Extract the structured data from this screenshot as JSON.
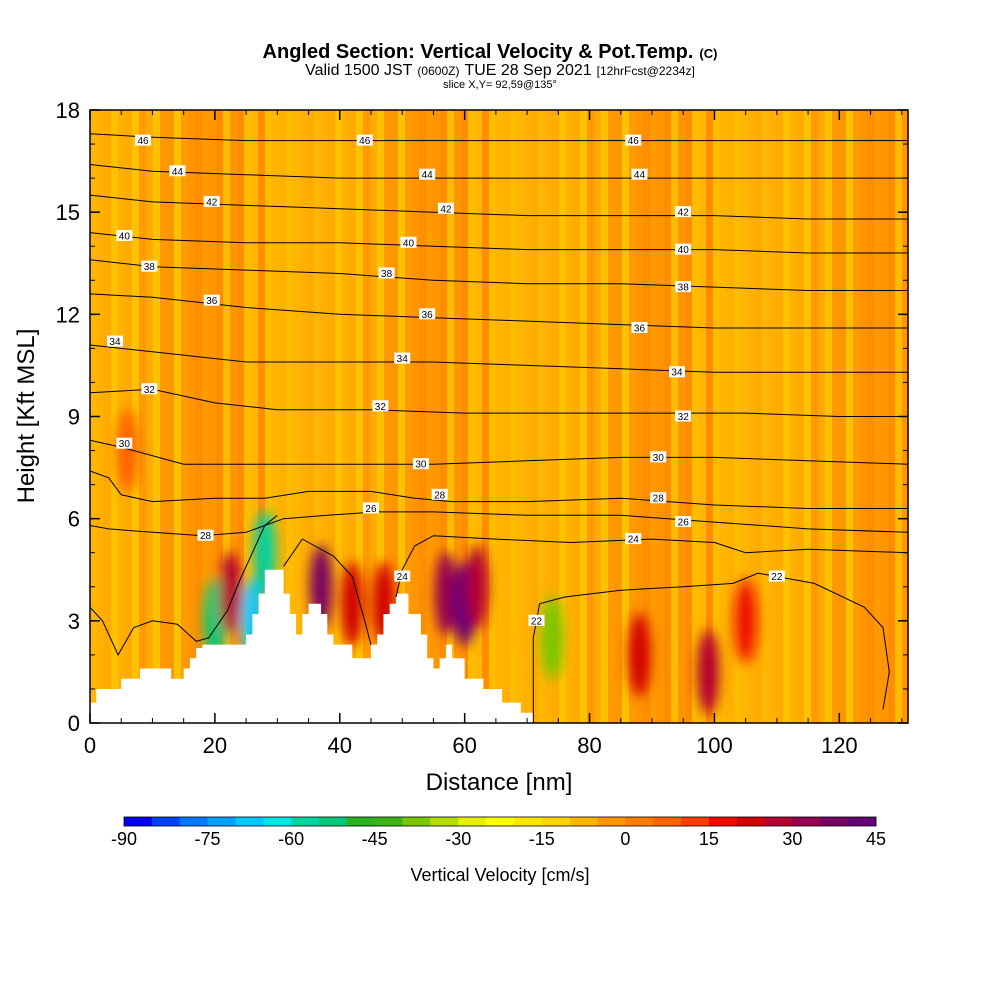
{
  "chart_data": {
    "type": "heatmap",
    "title": "Angled Section: Vertical Velocity & Pot.Temp.",
    "title_unit": "(C)",
    "subtitle_parts": [
      "Valid 1500 JST",
      "(0600Z)",
      "TUE 28 Sep 2021",
      "[12hrFcst@2234z]"
    ],
    "slice_label": "slice X,Y= 92,59@135°",
    "xlabel": "Distance [nm]",
    "ylabel": "Height [Kft MSL]",
    "xlim": [
      0,
      131
    ],
    "ylim": [
      0,
      18
    ],
    "x_ticks": [
      "0",
      "20",
      "40",
      "60",
      "80",
      "100",
      "120"
    ],
    "x_tick_values": [
      0,
      20,
      40,
      60,
      80,
      100,
      120
    ],
    "y_ticks": [
      "0",
      "3",
      "6",
      "9",
      "12",
      "15",
      "18"
    ],
    "y_tick_values": [
      0,
      3,
      6,
      9,
      12,
      15,
      18
    ],
    "colorbar": {
      "label": "Vertical Velocity [cm/s]",
      "tick_labels": [
        "-90",
        "-75",
        "-60",
        "-45",
        "-30",
        "-15",
        "0",
        "15",
        "30",
        "45"
      ],
      "tick_values": [
        -90,
        -75,
        -60,
        -45,
        -30,
        -15,
        0,
        15,
        30,
        45
      ],
      "bins": [
        -90,
        -85,
        -80,
        -75,
        -70,
        -65,
        -60,
        -55,
        -50,
        -45,
        -40,
        -35,
        -30,
        -25,
        -20,
        -15,
        -10,
        -5,
        0,
        5,
        10,
        15,
        20,
        25,
        30,
        35,
        40,
        45
      ],
      "colors": [
        "#0000f0",
        "#0040ff",
        "#0078ff",
        "#00a0ff",
        "#00c8ff",
        "#00e6e6",
        "#00d2a0",
        "#00c878",
        "#28b41e",
        "#3cb414",
        "#78c800",
        "#b4dc00",
        "#e6f000",
        "#ffff00",
        "#ffe600",
        "#ffd200",
        "#ffb400",
        "#ff9600",
        "#ff7d00",
        "#ff6400",
        "#ff3c00",
        "#f00a00",
        "#d20000",
        "#b40032",
        "#960050",
        "#780064",
        "#640078"
      ]
    },
    "velocity_features": [
      {
        "x": 6,
        "y": 8.0,
        "value": 8
      },
      {
        "x": 20,
        "y": 3.0,
        "value": -55
      },
      {
        "x": 22.5,
        "y": 3.8,
        "value": 25
      },
      {
        "x": 26,
        "y": 3.0,
        "value": -70
      },
      {
        "x": 28,
        "y": 5.0,
        "value": -60
      },
      {
        "x": 37,
        "y": 4.0,
        "value": 35
      },
      {
        "x": 42,
        "y": 3.5,
        "value": 22
      },
      {
        "x": 47,
        "y": 3.5,
        "value": 22
      },
      {
        "x": 57,
        "y": 3.8,
        "value": 30
      },
      {
        "x": 60,
        "y": 3.5,
        "value": 42
      },
      {
        "x": 62,
        "y": 4.0,
        "value": 25
      },
      {
        "x": 74,
        "y": 2.5,
        "value": -38
      },
      {
        "x": 88,
        "y": 2.0,
        "value": 20
      },
      {
        "x": 99,
        "y": 1.5,
        "value": 25
      },
      {
        "x": 105,
        "y": 3.0,
        "value": 15
      }
    ],
    "terrain": [
      [
        0,
        0.6
      ],
      [
        1,
        0.6
      ],
      [
        1,
        1.0
      ],
      [
        5,
        1.0
      ],
      [
        5,
        1.3
      ],
      [
        8,
        1.3
      ],
      [
        8,
        1.6
      ],
      [
        13,
        1.6
      ],
      [
        13,
        1.3
      ],
      [
        15,
        1.3
      ],
      [
        15,
        1.6
      ],
      [
        16,
        1.6
      ],
      [
        16,
        1.9
      ],
      [
        17,
        1.9
      ],
      [
        17,
        2.2
      ],
      [
        18,
        2.2
      ],
      [
        18,
        2.3
      ],
      [
        25,
        2.3
      ],
      [
        25,
        2.6
      ],
      [
        26,
        2.6
      ],
      [
        26,
        3.2
      ],
      [
        27,
        3.2
      ],
      [
        27,
        3.8
      ],
      [
        28,
        3.8
      ],
      [
        28,
        4.5
      ],
      [
        31,
        4.5
      ],
      [
        31,
        3.8
      ],
      [
        32,
        3.8
      ],
      [
        32,
        3.2
      ],
      [
        33,
        3.2
      ],
      [
        33,
        2.6
      ],
      [
        34,
        2.6
      ],
      [
        34,
        3.2
      ],
      [
        35,
        3.2
      ],
      [
        35,
        3.5
      ],
      [
        37,
        3.5
      ],
      [
        37,
        3.2
      ],
      [
        38,
        3.2
      ],
      [
        38,
        2.6
      ],
      [
        39,
        2.6
      ],
      [
        39,
        2.3
      ],
      [
        42,
        2.3
      ],
      [
        42,
        1.9
      ],
      [
        45,
        1.9
      ],
      [
        45,
        2.3
      ],
      [
        46,
        2.3
      ],
      [
        46,
        2.6
      ],
      [
        47,
        2.6
      ],
      [
        47,
        3.2
      ],
      [
        48,
        3.2
      ],
      [
        48,
        3.5
      ],
      [
        49,
        3.5
      ],
      [
        49,
        3.8
      ],
      [
        51,
        3.8
      ],
      [
        51,
        3.2
      ],
      [
        53,
        3.2
      ],
      [
        53,
        2.6
      ],
      [
        54,
        2.6
      ],
      [
        54,
        1.9
      ],
      [
        55,
        1.9
      ],
      [
        55,
        1.6
      ],
      [
        56,
        1.6
      ],
      [
        56,
        1.9
      ],
      [
        57,
        1.9
      ],
      [
        57,
        2.3
      ],
      [
        58,
        2.3
      ],
      [
        58,
        1.9
      ],
      [
        60,
        1.9
      ],
      [
        60,
        1.3
      ],
      [
        63,
        1.3
      ],
      [
        63,
        1.0
      ],
      [
        66,
        1.0
      ],
      [
        66,
        0.6
      ],
      [
        69,
        0.6
      ],
      [
        69,
        0.3
      ],
      [
        71,
        0.3
      ],
      [
        71,
        0.0
      ]
    ],
    "theta_contours": [
      {
        "label": "22",
        "points": [
          [
            71,
            0.0
          ],
          [
            71,
            2.5
          ],
          [
            72,
            3.5
          ],
          [
            76,
            3.7
          ],
          [
            85,
            3.9
          ],
          [
            95,
            4.0
          ],
          [
            103,
            4.1
          ],
          [
            107,
            4.4
          ],
          [
            116,
            4.1
          ],
          [
            124,
            3.4
          ],
          [
            127,
            2.8
          ],
          [
            128,
            1.5
          ],
          [
            127,
            0.4
          ]
        ],
        "labels_at": [
          [
            71.5,
            3.0
          ],
          [
            110,
            4.3
          ]
        ]
      },
      {
        "label": "22",
        "points": [
          [
            0,
            3.4
          ],
          [
            2,
            3.0
          ],
          [
            4.5,
            2.0
          ],
          [
            7,
            2.8
          ],
          [
            10,
            3.0
          ],
          [
            14,
            2.9
          ],
          [
            17,
            2.4
          ],
          [
            19,
            2.5
          ],
          [
            22,
            3.3
          ],
          [
            24,
            4.2
          ],
          [
            26,
            5.0
          ],
          [
            28,
            5.8
          ],
          [
            30,
            6.1
          ]
        ],
        "labels_at": []
      },
      {
        "label": "24",
        "points": [
          [
            31,
            4.6
          ],
          [
            34,
            5.4
          ],
          [
            39,
            4.9
          ],
          [
            42,
            4.3
          ],
          [
            44,
            3.0
          ],
          [
            45,
            2.3
          ]
        ],
        "labels_at": []
      },
      {
        "label": "24",
        "points": [
          [
            49,
            3.7
          ],
          [
            50,
            4.5
          ],
          [
            52,
            5.2
          ],
          [
            55,
            5.5
          ],
          [
            65,
            5.4
          ],
          [
            77,
            5.3
          ],
          [
            90,
            5.4
          ],
          [
            100,
            5.3
          ],
          [
            105,
            5.0
          ],
          [
            115,
            5.1
          ],
          [
            131,
            5.0
          ]
        ],
        "labels_at": [
          [
            50,
            4.3
          ],
          [
            87,
            5.4
          ]
        ]
      },
      {
        "label": "26",
        "points": [
          [
            0,
            5.8
          ],
          [
            3,
            5.7
          ],
          [
            10,
            5.6
          ],
          [
            18,
            5.5
          ],
          [
            25,
            5.6
          ],
          [
            28,
            5.8
          ],
          [
            31,
            6.0
          ],
          [
            38,
            6.1
          ],
          [
            46,
            6.2
          ],
          [
            55,
            6.2
          ],
          [
            70,
            6.1
          ],
          [
            85,
            6.1
          ],
          [
            100,
            5.9
          ],
          [
            115,
            5.7
          ],
          [
            131,
            5.6
          ]
        ],
        "labels_at": [
          [
            45,
            6.3
          ],
          [
            95,
            5.9
          ]
        ]
      },
      {
        "label": "28",
        "points": [
          [
            0,
            7.4
          ],
          [
            3,
            7.2
          ],
          [
            5,
            6.7
          ],
          [
            10,
            6.5
          ],
          [
            20,
            6.6
          ],
          [
            28,
            6.6
          ],
          [
            35,
            6.8
          ],
          [
            45,
            6.8
          ],
          [
            52,
            6.6
          ],
          [
            58,
            6.5
          ],
          [
            70,
            6.5
          ],
          [
            85,
            6.6
          ],
          [
            100,
            6.4
          ],
          [
            115,
            6.3
          ],
          [
            131,
            6.3
          ]
        ],
        "labels_at": [
          [
            18.5,
            5.5
          ],
          [
            56,
            6.7
          ],
          [
            91,
            6.6
          ]
        ]
      },
      {
        "label": "30",
        "points": [
          [
            0,
            8.3
          ],
          [
            5,
            8.1
          ],
          [
            15,
            7.6
          ],
          [
            25,
            7.6
          ],
          [
            35,
            7.6
          ],
          [
            45,
            7.6
          ],
          [
            55,
            7.6
          ],
          [
            70,
            7.7
          ],
          [
            85,
            7.8
          ],
          [
            100,
            7.8
          ],
          [
            115,
            7.7
          ],
          [
            131,
            7.6
          ]
        ],
        "labels_at": [
          [
            5.5,
            8.2
          ],
          [
            53,
            7.6
          ],
          [
            91,
            7.8
          ]
        ]
      },
      {
        "label": "32",
        "points": [
          [
            0,
            9.7
          ],
          [
            10,
            9.8
          ],
          [
            20,
            9.4
          ],
          [
            30,
            9.2
          ],
          [
            45,
            9.2
          ],
          [
            60,
            9.1
          ],
          [
            75,
            9.1
          ],
          [
            90,
            9.1
          ],
          [
            105,
            9.1
          ],
          [
            120,
            9.0
          ],
          [
            131,
            9.0
          ]
        ],
        "labels_at": [
          [
            9.5,
            9.8
          ],
          [
            46.5,
            9.3
          ],
          [
            95,
            9.0
          ]
        ]
      },
      {
        "label": "34",
        "points": [
          [
            0,
            11.1
          ],
          [
            10,
            10.9
          ],
          [
            25,
            10.6
          ],
          [
            40,
            10.6
          ],
          [
            55,
            10.6
          ],
          [
            70,
            10.5
          ],
          [
            85,
            10.4
          ],
          [
            100,
            10.3
          ],
          [
            115,
            10.3
          ],
          [
            131,
            10.3
          ]
        ],
        "labels_at": [
          [
            4,
            11.2
          ],
          [
            50,
            10.7
          ],
          [
            94,
            10.3
          ]
        ]
      },
      {
        "label": "36",
        "points": [
          [
            0,
            12.6
          ],
          [
            10,
            12.5
          ],
          [
            25,
            12.2
          ],
          [
            40,
            12.0
          ],
          [
            55,
            11.9
          ],
          [
            70,
            11.8
          ],
          [
            85,
            11.7
          ],
          [
            100,
            11.6
          ],
          [
            115,
            11.6
          ],
          [
            131,
            11.6
          ]
        ],
        "labels_at": [
          [
            19.5,
            12.4
          ],
          [
            54,
            12.0
          ],
          [
            88,
            11.6
          ]
        ]
      },
      {
        "label": "38",
        "points": [
          [
            0,
            13.6
          ],
          [
            10,
            13.4
          ],
          [
            25,
            13.3
          ],
          [
            40,
            13.2
          ],
          [
            55,
            13.0
          ],
          [
            70,
            12.9
          ],
          [
            85,
            12.9
          ],
          [
            100,
            12.8
          ],
          [
            115,
            12.7
          ],
          [
            131,
            12.7
          ]
        ],
        "labels_at": [
          [
            9.5,
            13.4
          ],
          [
            47.5,
            13.2
          ],
          [
            95,
            12.8
          ]
        ]
      },
      {
        "label": "40",
        "points": [
          [
            0,
            14.4
          ],
          [
            10,
            14.2
          ],
          [
            25,
            14.1
          ],
          [
            40,
            14.1
          ],
          [
            55,
            14.0
          ],
          [
            70,
            13.9
          ],
          [
            85,
            13.9
          ],
          [
            100,
            13.9
          ],
          [
            115,
            13.8
          ],
          [
            131,
            13.8
          ]
        ],
        "labels_at": [
          [
            5.5,
            14.3
          ],
          [
            51,
            14.1
          ],
          [
            95,
            13.9
          ]
        ]
      },
      {
        "label": "42",
        "points": [
          [
            0,
            15.5
          ],
          [
            10,
            15.3
          ],
          [
            25,
            15.2
          ],
          [
            40,
            15.1
          ],
          [
            55,
            15.0
          ],
          [
            70,
            14.9
          ],
          [
            85,
            14.9
          ],
          [
            100,
            14.9
          ],
          [
            115,
            14.8
          ],
          [
            131,
            14.8
          ]
        ],
        "labels_at": [
          [
            19.5,
            15.3
          ],
          [
            57,
            15.1
          ],
          [
            95,
            15.0
          ]
        ]
      },
      {
        "label": "44",
        "points": [
          [
            0,
            16.4
          ],
          [
            10,
            16.2
          ],
          [
            25,
            16.1
          ],
          [
            40,
            16.0
          ],
          [
            55,
            16.0
          ],
          [
            70,
            16.0
          ],
          [
            85,
            16.0
          ],
          [
            100,
            16.0
          ],
          [
            115,
            16.0
          ],
          [
            131,
            16.0
          ]
        ],
        "labels_at": [
          [
            14,
            16.2
          ],
          [
            54,
            16.1
          ],
          [
            88,
            16.1
          ]
        ]
      },
      {
        "label": "46",
        "points": [
          [
            0,
            17.3
          ],
          [
            10,
            17.2
          ],
          [
            25,
            17.1
          ],
          [
            40,
            17.1
          ],
          [
            55,
            17.1
          ],
          [
            70,
            17.1
          ],
          [
            85,
            17.1
          ],
          [
            100,
            17.1
          ],
          [
            115,
            17.1
          ],
          [
            131,
            17.1
          ]
        ],
        "labels_at": [
          [
            8.5,
            17.1
          ],
          [
            44,
            17.1
          ],
          [
            87,
            17.1
          ]
        ]
      }
    ]
  }
}
